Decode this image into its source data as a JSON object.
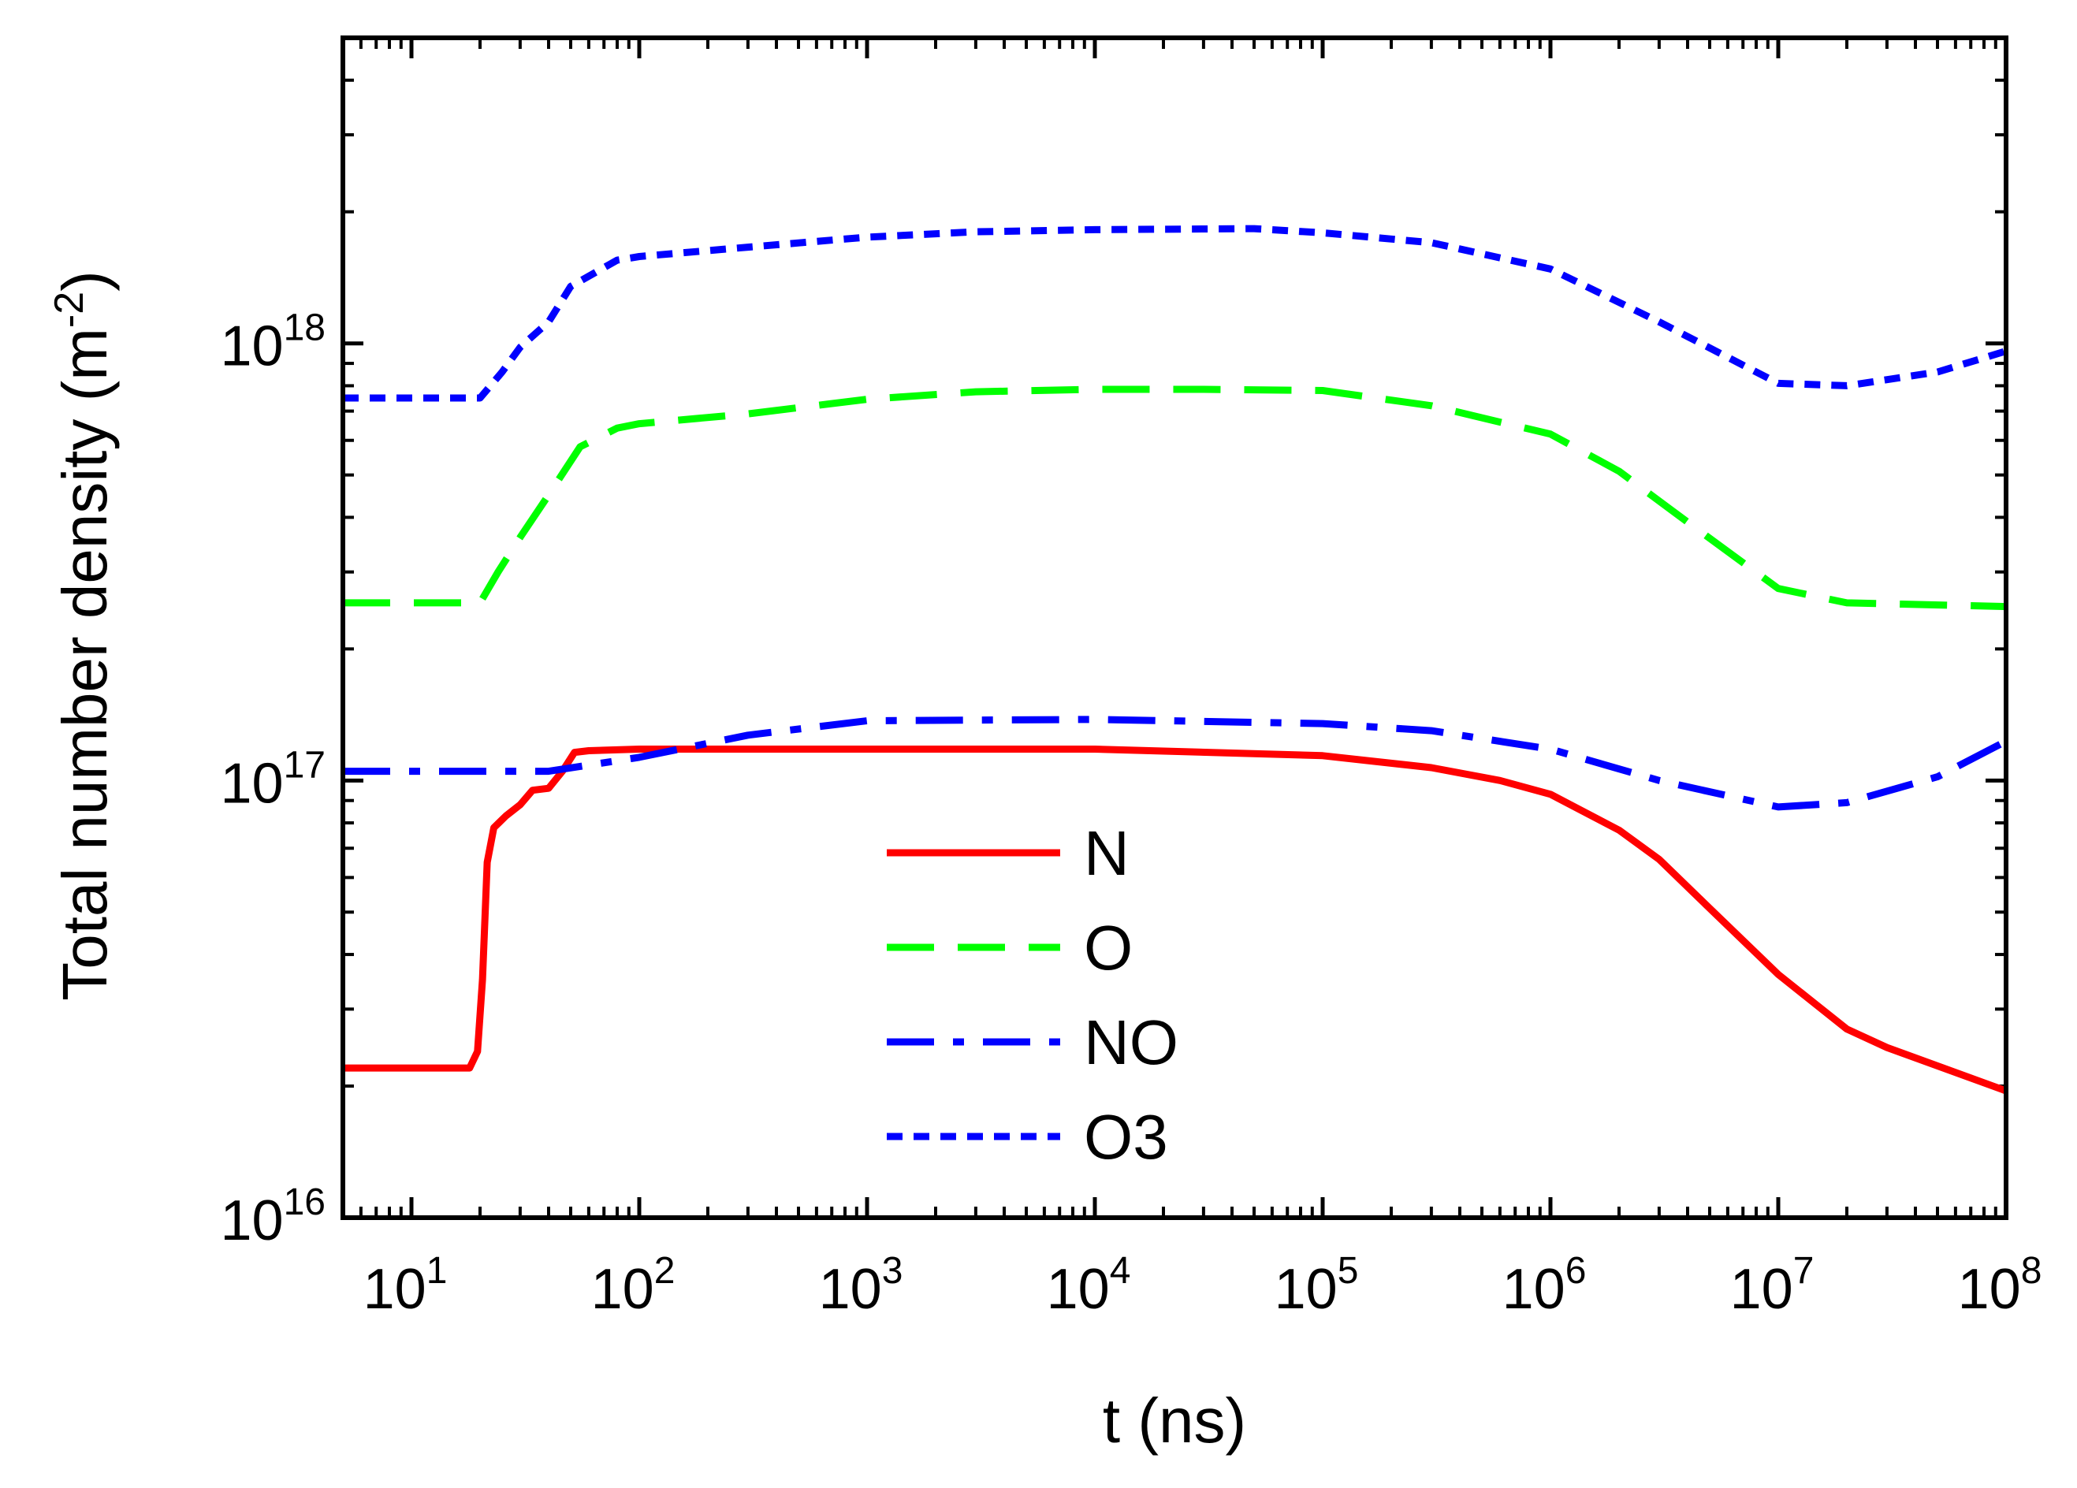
{
  "chart_data": {
    "type": "line",
    "title": "",
    "xlabel": "t (ns)",
    "ylabel": {
      "main": "Total number density (m",
      "sup": "-2",
      "close": ")"
    },
    "xscale": "log",
    "yscale": "log",
    "xlim": [
      5,
      100000000
    ],
    "ylim": [
      10000000000000000,
      5000000000000000000
    ],
    "x_ticks": [
      {
        "value": 10,
        "base": "10",
        "exp": "1"
      },
      {
        "value": 100,
        "base": "10",
        "exp": "2"
      },
      {
        "value": 1000,
        "base": "10",
        "exp": "3"
      },
      {
        "value": 10000,
        "base": "10",
        "exp": "4"
      },
      {
        "value": 100000,
        "base": "10",
        "exp": "5"
      },
      {
        "value": 1000000,
        "base": "10",
        "exp": "6"
      },
      {
        "value": 10000000,
        "base": "10",
        "exp": "7"
      },
      {
        "value": 100000000,
        "base": "10",
        "exp": "8"
      }
    ],
    "y_ticks": [
      {
        "value": 10000000000000000,
        "base": "10",
        "exp": "16"
      },
      {
        "value": 100000000000000000,
        "base": "10",
        "exp": "17"
      },
      {
        "value": 1000000000000000000,
        "base": "10",
        "exp": "18"
      }
    ],
    "legend_position": "center-bottom",
    "series": [
      {
        "name": "N",
        "color": "#ff0000",
        "style": "solid",
        "points": [
          [
            5,
            2.2e+16
          ],
          [
            18,
            2.2e+16
          ],
          [
            19.5,
            2.4e+16
          ],
          [
            20.5,
            3.5e+16
          ],
          [
            21.5,
            6.5e+16
          ],
          [
            23,
            7.8e+16
          ],
          [
            26,
            8.3e+16
          ],
          [
            30,
            8.8e+16
          ],
          [
            34,
            9.5e+16
          ],
          [
            40,
            9.6e+16
          ],
          [
            46,
            1.05e+17
          ],
          [
            52,
            1.16e+17
          ],
          [
            60,
            1.17e+17
          ],
          [
            100,
            1.18e+17
          ],
          [
            1000,
            1.18e+17
          ],
          [
            10000,
            1.18e+17
          ],
          [
            100000,
            1.14e+17
          ],
          [
            300000,
            1.07e+17
          ],
          [
            600000,
            1e+17
          ],
          [
            1000000,
            9.3e+16
          ],
          [
            2000000,
            7.7e+16
          ],
          [
            3000000,
            6.6e+16
          ],
          [
            5000000,
            5.1e+16
          ],
          [
            10000000,
            3.6e+16
          ],
          [
            20000000,
            2.7e+16
          ],
          [
            30000000,
            2.45e+16
          ],
          [
            100000000,
            1.95e+16
          ]
        ]
      },
      {
        "name": "O",
        "color": "#00ff00",
        "style": "dashed",
        "points": [
          [
            5,
            2.55e+17
          ],
          [
            20,
            2.55e+17
          ],
          [
            24,
            3e+17
          ],
          [
            30,
            3.6e+17
          ],
          [
            40,
            4.5e+17
          ],
          [
            55,
            5.8e+17
          ],
          [
            80,
            6.4e+17
          ],
          [
            100,
            6.55e+17
          ],
          [
            300,
            6.9e+17
          ],
          [
            1000,
            7.45e+17
          ],
          [
            3000,
            7.75e+17
          ],
          [
            10000,
            7.85e+17
          ],
          [
            30000,
            7.85e+17
          ],
          [
            100000,
            7.8e+17
          ],
          [
            300000,
            7.2e+17
          ],
          [
            1000000,
            6.2e+17
          ],
          [
            2000000,
            5.1e+17
          ],
          [
            4000000,
            3.9e+17
          ],
          [
            10000000,
            2.75e+17
          ],
          [
            20000000,
            2.55e+17
          ],
          [
            100000000,
            2.5e+17
          ]
        ]
      },
      {
        "name": "NO",
        "color": "#0000ff",
        "style": "dashdot",
        "points": [
          [
            5,
            1.05e+17
          ],
          [
            40,
            1.05e+17
          ],
          [
            100,
            1.13e+17
          ],
          [
            300,
            1.27e+17
          ],
          [
            1000,
            1.37e+17
          ],
          [
            10000,
            1.38e+17
          ],
          [
            100000,
            1.35e+17
          ],
          [
            300000,
            1.3e+17
          ],
          [
            1000000,
            1.18e+17
          ],
          [
            3000000,
            1e+17
          ],
          [
            10000000,
            8.7e+16
          ],
          [
            20000000,
            8.9e+16
          ],
          [
            50000000,
            1.02e+17
          ],
          [
            100000000,
            1.23e+17
          ]
        ]
      },
      {
        "name": "O3",
        "color": "#0000ff",
        "style": "dotted",
        "points": [
          [
            5,
            7.5e+17
          ],
          [
            20,
            7.5e+17
          ],
          [
            25,
            8.6e+17
          ],
          [
            30,
            9.8e+17
          ],
          [
            40,
            1.12e+18
          ],
          [
            50,
            1.35e+18
          ],
          [
            80,
            1.55e+18
          ],
          [
            100,
            1.58e+18
          ],
          [
            300,
            1.66e+18
          ],
          [
            1000,
            1.75e+18
          ],
          [
            3000,
            1.8e+18
          ],
          [
            10000,
            1.82e+18
          ],
          [
            50000,
            1.83e+18
          ],
          [
            100000,
            1.79e+18
          ],
          [
            300000,
            1.7e+18
          ],
          [
            1000000,
            1.48e+18
          ],
          [
            3000000,
            1.12e+18
          ],
          [
            10000000,
            8.1e+17
          ],
          [
            20000000,
            8e+17
          ],
          [
            50000000,
            8.6e+17
          ],
          [
            100000000,
            9.6e+17
          ]
        ]
      }
    ]
  }
}
